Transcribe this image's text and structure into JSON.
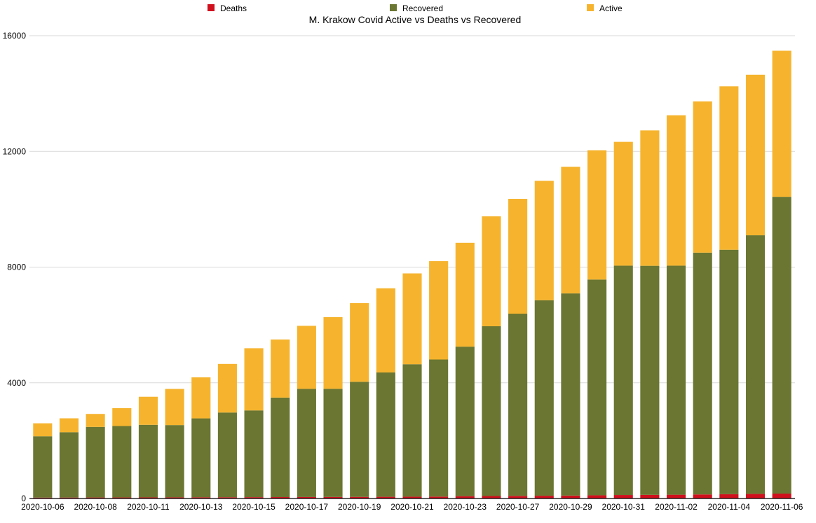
{
  "chart_data": {
    "type": "bar",
    "stacked": true,
    "title": "M. Krakow Covid Active vs Deaths vs Recovered",
    "xlabel": "",
    "ylabel": "",
    "ylim": [
      0,
      16000
    ],
    "yticks": [
      0,
      4000,
      8000,
      12000,
      16000
    ],
    "grid": true,
    "legend_position": "top",
    "categories": [
      "2020-10-06",
      "2020-10-07",
      "2020-10-08",
      "2020-10-09",
      "2020-10-11",
      "2020-10-12",
      "2020-10-13",
      "2020-10-14",
      "2020-10-15",
      "2020-10-16",
      "2020-10-17",
      "2020-10-18",
      "2020-10-19",
      "2020-10-20",
      "2020-10-21",
      "2020-10-22",
      "2020-10-23",
      "2020-10-26",
      "2020-10-27",
      "2020-10-28",
      "2020-10-29",
      "2020-10-30",
      "2020-10-31",
      "2020-11-01",
      "2020-11-02",
      "2020-11-03",
      "2020-11-04",
      "2020-11-05",
      "2020-11-06"
    ],
    "tick_labels": [
      "2020-10-06",
      "2020-10-08",
      "2020-10-11",
      "2020-10-13",
      "2020-10-15",
      "2020-10-17",
      "2020-10-19",
      "2020-10-21",
      "2020-10-23",
      "2020-10-27",
      "2020-10-29",
      "2020-10-31",
      "2020-11-02",
      "2020-11-04",
      "2020-11-06"
    ],
    "series": [
      {
        "name": "Deaths",
        "color": "#d0101d",
        "values": [
          30,
          32,
          34,
          35,
          37,
          38,
          40,
          42,
          45,
          48,
          50,
          52,
          55,
          58,
          62,
          65,
          80,
          85,
          90,
          95,
          100,
          110,
          120,
          125,
          130,
          140,
          150,
          160,
          170
        ]
      },
      {
        "name": "Recovered",
        "color": "#6a7631",
        "values": [
          2120,
          2260,
          2440,
          2470,
          2510,
          2500,
          2730,
          2930,
          3000,
          3440,
          3740,
          3740,
          3980,
          4300,
          4580,
          4740,
          5170,
          5870,
          6300,
          6760,
          6990,
          7460,
          7930,
          7920,
          7920,
          8360,
          8450,
          8940,
          10260
        ]
      },
      {
        "name": "Active",
        "color": "#f6b42e",
        "values": [
          450,
          480,
          450,
          620,
          970,
          1250,
          1420,
          1680,
          2150,
          2010,
          2180,
          2480,
          2720,
          2910,
          3140,
          3400,
          3590,
          3800,
          3970,
          4130,
          4380,
          4470,
          4280,
          4680,
          5200,
          5230,
          5650,
          5550,
          5050
        ]
      }
    ]
  }
}
